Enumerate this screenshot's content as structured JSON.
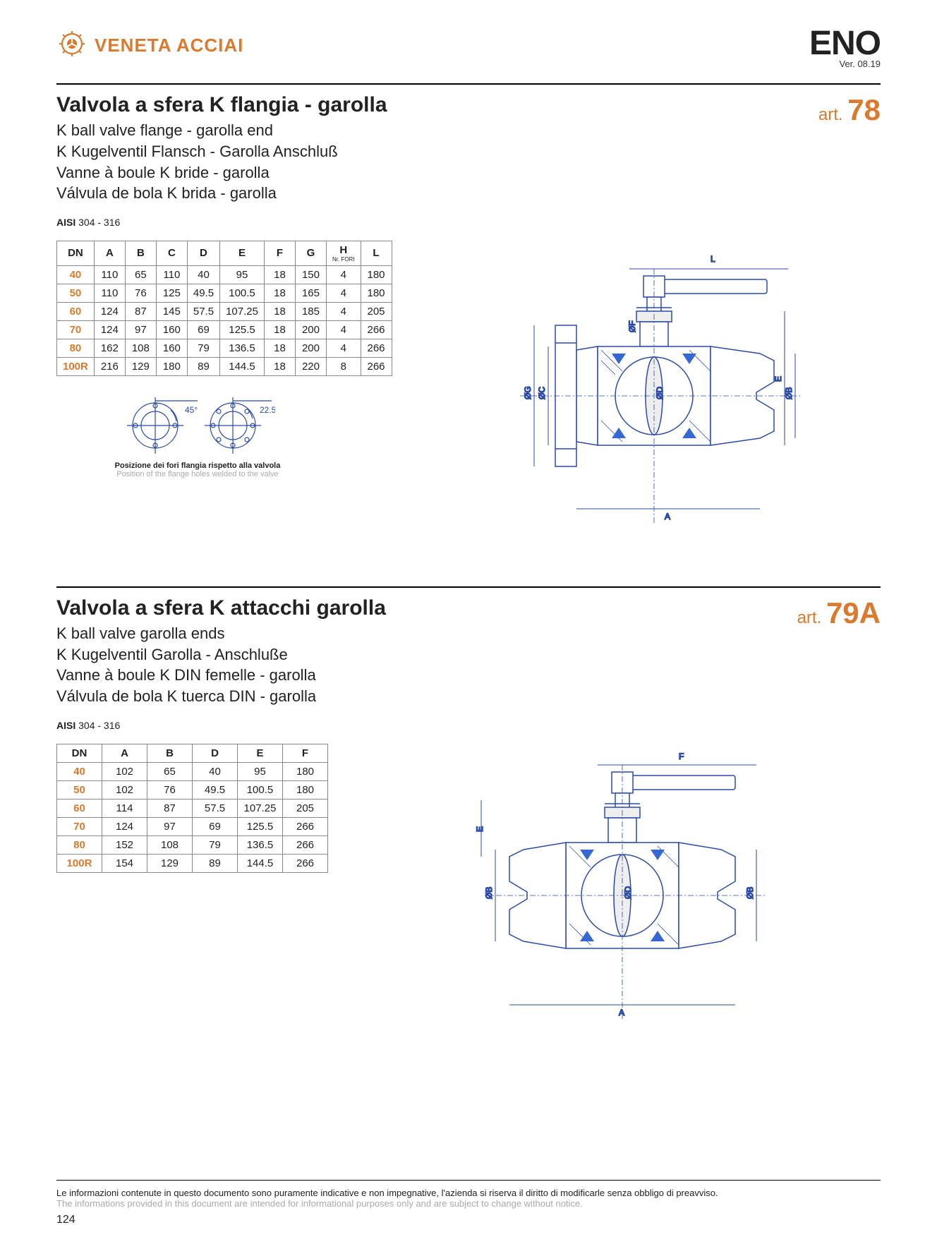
{
  "brand": "VENETA ACCIAI",
  "eno": "ENO",
  "version": "Ver. 08.19",
  "page_number": "124",
  "footer_it": "Le informazioni contenute in questo documento sono puramente indicative e non impegnative, l'azienda si riserva il diritto di modificarle senza obbligo di preavviso.",
  "footer_en": "The informations provided in this document are intended for informational purposes only and are subject to change without notice.",
  "section1": {
    "art_prefix": "art.",
    "art_num": "78",
    "title_it": "Valvola a sfera K flangia - garolla",
    "title_en": "K ball valve flange - garolla end",
    "title_de": "K Kugelventil Flansch - Garolla Anschluß",
    "title_fr": "Vanne à boule K bride - garolla",
    "title_es": "Válvula de bola K brida - garolla",
    "aisi_label": "AISI",
    "aisi_value": "304 - 316",
    "table": {
      "columns": [
        "DN",
        "A",
        "B",
        "C",
        "D",
        "E",
        "F",
        "G",
        "H",
        "L"
      ],
      "h_sub": "Nr. FORI",
      "rows": [
        [
          "40",
          "110",
          "65",
          "110",
          "40",
          "95",
          "18",
          "150",
          "4",
          "180"
        ],
        [
          "50",
          "110",
          "76",
          "125",
          "49.5",
          "100.5",
          "18",
          "165",
          "4",
          "180"
        ],
        [
          "60",
          "124",
          "87",
          "145",
          "57.5",
          "107.25",
          "18",
          "185",
          "4",
          "205"
        ],
        [
          "70",
          "124",
          "97",
          "160",
          "69",
          "125.5",
          "18",
          "200",
          "4",
          "266"
        ],
        [
          "80",
          "162",
          "108",
          "160",
          "79",
          "136.5",
          "18",
          "200",
          "4",
          "266"
        ],
        [
          "100R",
          "216",
          "129",
          "180",
          "89",
          "144.5",
          "18",
          "220",
          "8",
          "266"
        ]
      ]
    },
    "flange_note_it": "Posizione dei fori flangia rispetto alla valvola",
    "flange_note_en": "Position of the flange holes welded to the valve",
    "angle1": "45°",
    "angle2": "22.5°",
    "drawing_labels": [
      "L",
      "E",
      "ØG",
      "ØC",
      "ØF",
      "ØD",
      "ØB",
      "A"
    ]
  },
  "section2": {
    "art_prefix": "art.",
    "art_num": "79A",
    "title_it": "Valvola a sfera K attacchi garolla",
    "title_en": "K ball valve garolla ends",
    "title_de": "K Kugelventil Garolla - Anschluße",
    "title_fr": "Vanne à boule K DIN  femelle - garolla",
    "title_es": "Válvula de bola K tuerca DIN - garolla",
    "aisi_label": "AISI",
    "aisi_value": "304 - 316",
    "table": {
      "columns": [
        "DN",
        "A",
        "B",
        "D",
        "E",
        "F"
      ],
      "rows": [
        [
          "40",
          "102",
          "65",
          "40",
          "95",
          "180"
        ],
        [
          "50",
          "102",
          "76",
          "49.5",
          "100.5",
          "180"
        ],
        [
          "60",
          "114",
          "87",
          "57.5",
          "107.25",
          "205"
        ],
        [
          "70",
          "124",
          "97",
          "69",
          "125.5",
          "266"
        ],
        [
          "80",
          "152",
          "108",
          "79",
          "136.5",
          "266"
        ],
        [
          "100R",
          "154",
          "129",
          "89",
          "144.5",
          "266"
        ]
      ]
    },
    "drawing_labels": [
      "F",
      "E",
      "ØB",
      "ØD",
      "ØB",
      "A"
    ]
  },
  "colors": {
    "accent": "#d97a2e",
    "grey": "#aaaaaa",
    "line": "#2a4aa8"
  }
}
